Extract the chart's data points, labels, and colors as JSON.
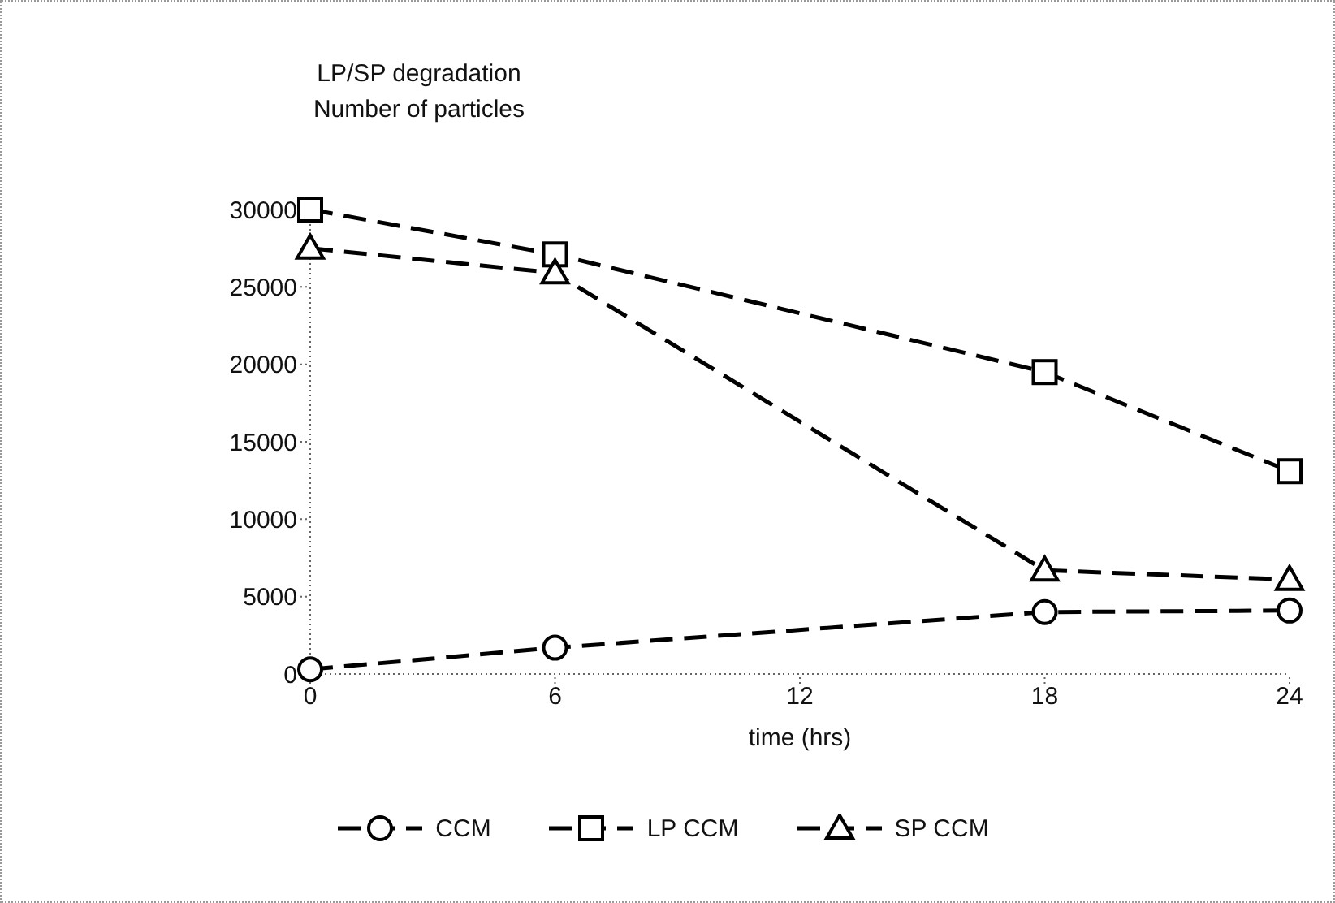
{
  "chart_data": {
    "type": "line",
    "title": "LP/SP degradation",
    "subtitle": "Number of particles",
    "xlabel": "time (hrs)",
    "x": [
      0,
      6,
      18,
      24
    ],
    "series": [
      {
        "name": "CCM",
        "color": "#000000",
        "marker": "circle",
        "values": [
          300,
          1700,
          4000,
          4100
        ]
      },
      {
        "name": "LP CCM",
        "color": "#000000",
        "marker": "square",
        "values": [
          30000,
          27100,
          19500,
          13100
        ]
      },
      {
        "name": "SP CCM",
        "color": "#000000",
        "marker": "triangle",
        "values": [
          27500,
          25900,
          6700,
          6100
        ]
      }
    ],
    "xlim": [
      0,
      24
    ],
    "xticks": [
      0,
      6,
      12,
      18,
      24
    ],
    "ylim": [
      0,
      30000
    ],
    "yticks": [
      0,
      5000,
      10000,
      15000,
      20000,
      25000,
      30000
    ],
    "grid": false,
    "legend": "bottom",
    "line_style": "dashed"
  }
}
